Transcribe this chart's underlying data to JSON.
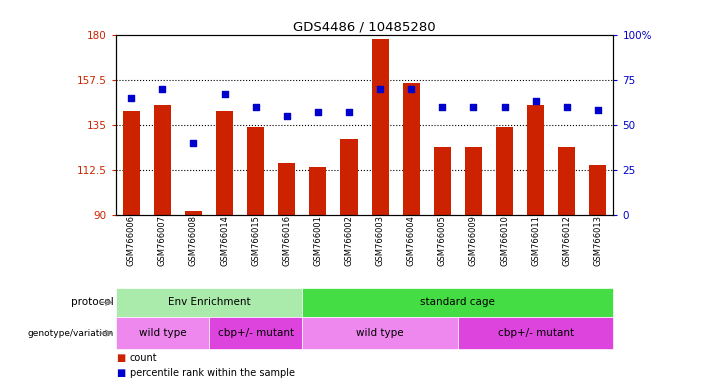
{
  "title": "GDS4486 / 10485280",
  "samples": [
    "GSM766006",
    "GSM766007",
    "GSM766008",
    "GSM766014",
    "GSM766015",
    "GSM766016",
    "GSM766001",
    "GSM766002",
    "GSM766003",
    "GSM766004",
    "GSM766005",
    "GSM766009",
    "GSM766010",
    "GSM766011",
    "GSM766012",
    "GSM766013"
  ],
  "counts": [
    142,
    145,
    92,
    142,
    134,
    116,
    114,
    128,
    178,
    156,
    124,
    124,
    134,
    145,
    124,
    115
  ],
  "percentiles": [
    65,
    70,
    40,
    67,
    60,
    55,
    57,
    57,
    70,
    70,
    60,
    60,
    60,
    63,
    60,
    58
  ],
  "ylim_left": [
    90,
    180
  ],
  "ylim_right": [
    0,
    100
  ],
  "yticks_left": [
    90,
    112.5,
    135,
    157.5,
    180
  ],
  "ytick_labels_left": [
    "90",
    "112.5",
    "135",
    "157.5",
    "180"
  ],
  "yticks_right": [
    0,
    25,
    50,
    75,
    100
  ],
  "ytick_labels_right": [
    "0",
    "25",
    "50",
    "75",
    "100%"
  ],
  "bar_color": "#cc2200",
  "dot_color": "#0000cc",
  "protocol_groups": [
    {
      "label": "Env Enrichment",
      "start": 0,
      "end": 6,
      "color": "#aaeaaa"
    },
    {
      "label": "standard cage",
      "start": 6,
      "end": 16,
      "color": "#44dd44"
    }
  ],
  "genotype_groups": [
    {
      "label": "wild type",
      "start": 0,
      "end": 3,
      "color": "#ee88ee"
    },
    {
      "label": "cbp+/- mutant",
      "start": 3,
      "end": 6,
      "color": "#dd44dd"
    },
    {
      "label": "wild type",
      "start": 6,
      "end": 11,
      "color": "#ee88ee"
    },
    {
      "label": "cbp+/- mutant",
      "start": 11,
      "end": 16,
      "color": "#dd44dd"
    }
  ],
  "legend_count_color": "#cc2200",
  "legend_pct_color": "#0000cc",
  "background_color": "#ffffff"
}
